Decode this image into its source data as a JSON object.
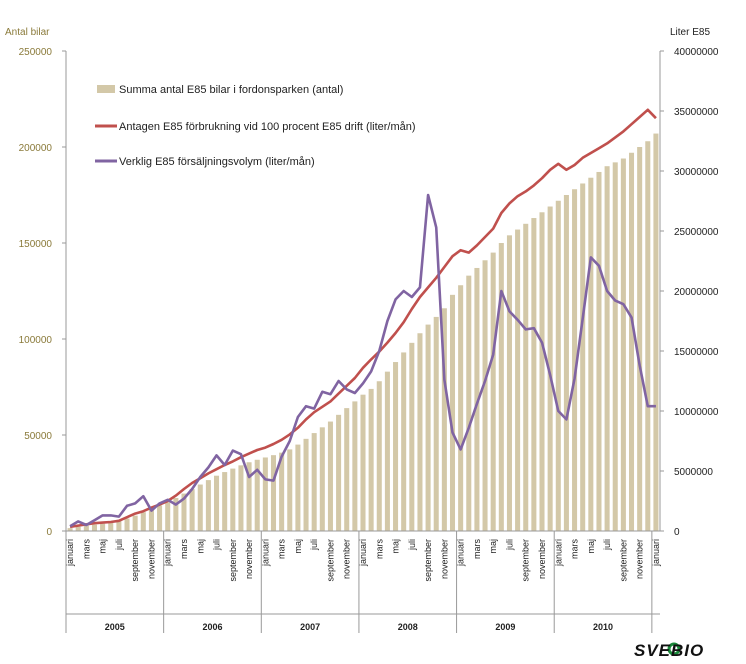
{
  "chart_data": {
    "type": "bar+line",
    "left_axis_title": "Antal bilar",
    "right_axis_title": "Liter E85",
    "left_ylim": [
      0,
      250000
    ],
    "right_ylim": [
      0,
      40000000
    ],
    "left_ticks": [
      "0",
      "50000",
      "100000",
      "150000",
      "200000",
      "250000"
    ],
    "right_ticks": [
      "0",
      "5000000",
      "10000000",
      "15000000",
      "20000000",
      "25000000",
      "30000000",
      "35000000",
      "40000000"
    ],
    "month_labels": [
      "januari",
      "mars",
      "maj",
      "juli",
      "september",
      "november"
    ],
    "years": [
      "2005",
      "2006",
      "2007",
      "2008",
      "2009",
      "2010"
    ],
    "legend": {
      "bars": "Summa antal E85 bilar i fordonsparken (antal)",
      "red": "Antagen E85 förbrukning vid 100 procent E85 drift (liter/mån)",
      "purple": "Verklig E85 försäljningsvolym (liter/mån)"
    },
    "colors": {
      "bars": "#d3c8a8",
      "red": "#c0504d",
      "purple": "#8064a2",
      "left_axis": "#8a7a3a"
    },
    "series": [
      {
        "name": "Summa antal E85 bilar i fordonsparken (antal)",
        "axis": "left",
        "values": [
          1500,
          2200,
          2800,
          3300,
          3800,
          4400,
          5200,
          6500,
          8000,
          9800,
          11600,
          13300,
          15000,
          17200,
          19500,
          21800,
          24200,
          26500,
          28800,
          30700,
          32500,
          34200,
          35800,
          37100,
          38300,
          39500,
          40800,
          42500,
          45000,
          48000,
          51000,
          54000,
          57000,
          60500,
          64000,
          67500,
          71000,
          74000,
          78000,
          83000,
          88000,
          93000,
          98000,
          103000,
          107500,
          111500,
          116000,
          123000,
          128000,
          133000,
          137000,
          141000,
          145000,
          150000,
          154000,
          157000,
          160000,
          163000,
          166000,
          169000,
          172000,
          175000,
          178000,
          181000,
          184000,
          187000,
          190000,
          192000,
          194000,
          197000,
          200000,
          203000,
          207000
        ]
      },
      {
        "name": "Antagen E85 förbrukning vid 100 procent E85 drift (liter/mån)",
        "axis": "right",
        "values": [
          350000,
          450000,
          550000,
          650000,
          700000,
          750000,
          850000,
          1150000,
          1450000,
          1650000,
          1950000,
          2200000,
          2500000,
          2950000,
          3500000,
          4000000,
          4400000,
          4800000,
          5150000,
          5500000,
          5800000,
          6150000,
          6450000,
          6750000,
          6950000,
          7250000,
          7600000,
          8050000,
          8600000,
          9300000,
          9900000,
          10350000,
          10800000,
          11450000,
          12100000,
          12750000,
          13600000,
          14300000,
          14950000,
          15700000,
          16500000,
          17400000,
          18500000,
          19500000,
          20300000,
          21100000,
          22000000,
          22900000,
          23400000,
          23200000,
          23800000,
          24500000,
          25200000,
          26500000,
          27300000,
          27900000,
          28300000,
          28800000,
          29400000,
          30100000,
          30600000,
          30100000,
          30500000,
          31100000,
          31500000,
          31900000,
          32300000,
          32800000,
          33300000,
          33900000,
          34500000,
          35100000,
          34400000
        ]
      },
      {
        "name": "Verklig E85 försäljningsvolym (liter/mån)",
        "axis": "right",
        "values": [
          400000,
          800000,
          500000,
          900000,
          1300000,
          1300000,
          1200000,
          2100000,
          2300000,
          2900000,
          1700000,
          2300000,
          2600000,
          2200000,
          2700000,
          3500000,
          4500000,
          5300000,
          6300000,
          5500000,
          6700000,
          6400000,
          4500000,
          5100000,
          4300000,
          4200000,
          6200000,
          7500000,
          9500000,
          10400000,
          10200000,
          11600000,
          11400000,
          12500000,
          11800000,
          11500000,
          12300000,
          13300000,
          15000000,
          17500000,
          19300000,
          20000000,
          19500000,
          20300000,
          28000000,
          25300000,
          12600000,
          8200000,
          6800000,
          8600000,
          10600000,
          12500000,
          14700000,
          20000000,
          18300000,
          17600000,
          16800000,
          16900000,
          15700000,
          13000000,
          10000000,
          9300000,
          12700000,
          17700000,
          22800000,
          22100000,
          20000000,
          19200000,
          18900000,
          17800000,
          13800000,
          10400000,
          10400000
        ]
      }
    ]
  },
  "footer": {
    "logo": "SVEBIO"
  }
}
